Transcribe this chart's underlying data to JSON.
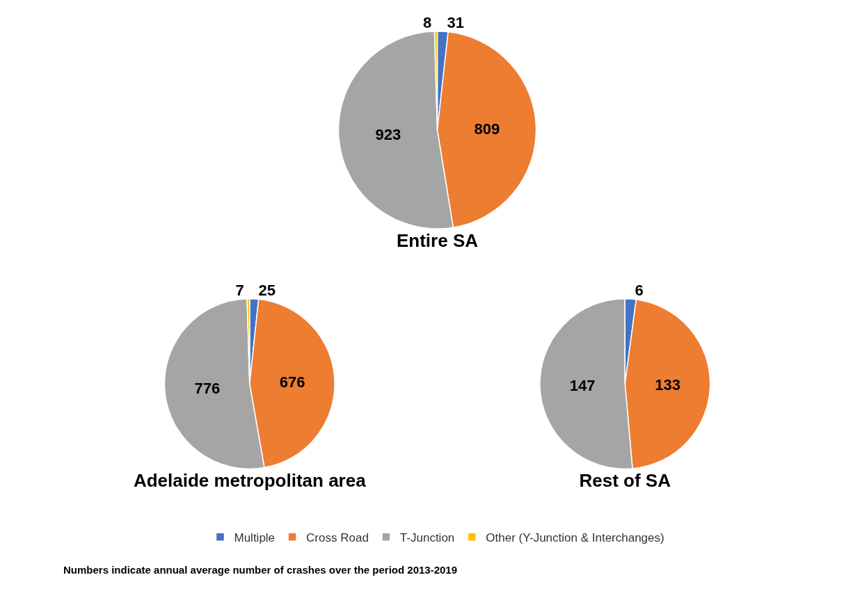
{
  "chart_data": [
    {
      "type": "pie",
      "title": "Entire SA",
      "categories": [
        "Multiple",
        "Cross Road",
        "T-Junction",
        "Other (Y-Junction & Interchanges)"
      ],
      "values": [
        31,
        809,
        923,
        8
      ],
      "colors": [
        "#4472c4",
        "#ed7d31",
        "#a5a5a5",
        "#ffc000"
      ],
      "data_labels": true,
      "legend": "bottom",
      "annotations": [
        "Numbers indicate annual average number of crashes over the period 2013-2019"
      ]
    },
    {
      "type": "pie",
      "title": "Adelaide metropolitan area",
      "categories": [
        null,
        null,
        null,
        null
      ],
      "values": [
        25,
        676,
        776,
        7
      ],
      "colors": [
        "#4472c4",
        "#ed7d31",
        "#a5a5a5",
        "#ffc000"
      ],
      "data_labels": true
    },
    {
      "type": "pie",
      "title": "Rest of SA",
      "categories": [
        null,
        null,
        null,
        null
      ],
      "values": [
        6,
        133,
        147,
        null
      ],
      "colors": [
        "#4472c4",
        "#ed7d31",
        "#a5a5a5",
        "#ffc000"
      ],
      "data_labels": true
    }
  ]
}
